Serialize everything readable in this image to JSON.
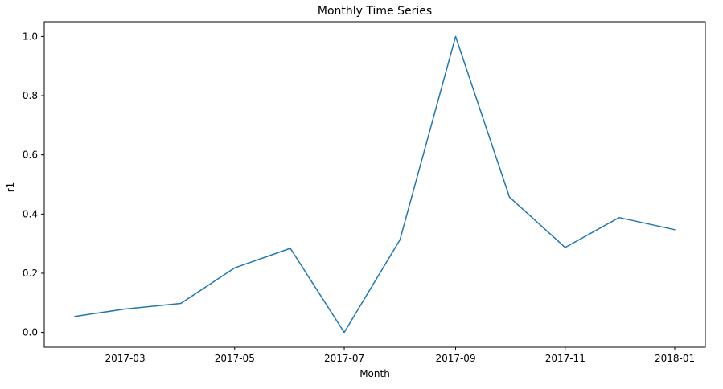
{
  "chart_data": {
    "type": "line",
    "title": "Monthly Time Series",
    "xlabel": "Month",
    "ylabel": "r1",
    "x": [
      "2017-02-01",
      "2017-03-01",
      "2017-04-01",
      "2017-05-01",
      "2017-06-01",
      "2017-07-01",
      "2017-08-01",
      "2017-09-01",
      "2017-10-01",
      "2017-11-01",
      "2017-12-01",
      "2018-01-01"
    ],
    "series": [
      {
        "values": [
          0.054,
          0.079,
          0.098,
          0.218,
          0.284,
          0.0,
          0.313,
          1.0,
          0.457,
          0.287,
          0.388,
          0.347
        ]
      }
    ],
    "xticks": [
      "2017-03",
      "2017-05",
      "2017-07",
      "2017-09",
      "2017-11",
      "2018-01"
    ],
    "xtick_dates": [
      "2017-03-01",
      "2017-05-01",
      "2017-07-01",
      "2017-09-01",
      "2017-11-01",
      "2018-01-01"
    ],
    "xlim": [
      "2017-01-15",
      "2018-01-18"
    ],
    "yticks": [
      "0.0",
      "0.2",
      "0.4",
      "0.6",
      "0.8",
      "1.0"
    ],
    "ytick_values": [
      0.0,
      0.2,
      0.4,
      0.6,
      0.8,
      1.0
    ],
    "ylim": [
      -0.05,
      1.05
    ],
    "grid": false,
    "colors": {
      "line": "#1f77b4",
      "axes": "#000000"
    }
  }
}
